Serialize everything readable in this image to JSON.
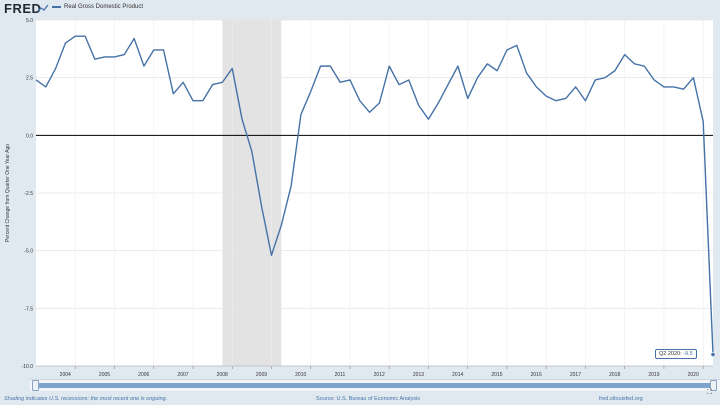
{
  "header": {
    "logo": "FRED",
    "legend_label": "Real Gross Domestic Product"
  },
  "tooltip": {
    "label": "Q2 2020:",
    "value": "-9.5"
  },
  "footer": {
    "left": "Shading indicates U.S. recessions; the most recent one is ongoing.",
    "center": "Source: U.S. Bureau of Economic Analysis",
    "right": "fred.stlouisfed.org"
  },
  "colors": {
    "series": "#4572a7",
    "recession": "#e3e3e3",
    "background": "#e1e9f0",
    "plot_bg": "#ffffff"
  },
  "chart_data": {
    "type": "line",
    "ylabel": "Percent Change from Quarter One Year Ago",
    "ylim": [
      -10,
      5
    ],
    "yticks": [
      5,
      2.5,
      0,
      -2.5,
      -5,
      -7.5,
      -10
    ],
    "ytick_labels": [
      "5.0",
      "2.5",
      "0.0",
      "-2.5",
      "-5.0",
      "-7.5",
      "-10.0"
    ],
    "xlim": [
      2003.0,
      2020.25
    ],
    "xticks": [
      2004,
      2005,
      2006,
      2007,
      2008,
      2009,
      2010,
      2011,
      2012,
      2013,
      2014,
      2015,
      2016,
      2017,
      2018,
      2019,
      2020
    ],
    "xtick_labels": [
      "2004",
      "2005",
      "2006",
      "2007",
      "2008",
      "2009",
      "2010",
      "2011",
      "2012",
      "2013",
      "2014",
      "2015",
      "2016",
      "2017",
      "2018",
      "2019",
      "2020"
    ],
    "grid": true,
    "legend_position": "top-left",
    "recessions": [
      [
        2007.75,
        2009.25
      ]
    ],
    "series": [
      {
        "name": "Real Gross Domestic Product",
        "x": [
          "2003 Q1",
          "2003 Q2",
          "2003 Q3",
          "2003 Q4",
          "2004 Q1",
          "2004 Q2",
          "2004 Q3",
          "2004 Q4",
          "2005 Q1",
          "2005 Q2",
          "2005 Q3",
          "2005 Q4",
          "2006 Q1",
          "2006 Q2",
          "2006 Q3",
          "2006 Q4",
          "2007 Q1",
          "2007 Q2",
          "2007 Q3",
          "2007 Q4",
          "2008 Q1",
          "2008 Q2",
          "2008 Q3",
          "2008 Q4",
          "2009 Q1",
          "2009 Q2",
          "2009 Q3",
          "2009 Q4",
          "2010 Q1",
          "2010 Q2",
          "2010 Q3",
          "2010 Q4",
          "2011 Q1",
          "2011 Q2",
          "2011 Q3",
          "2011 Q4",
          "2012 Q1",
          "2012 Q2",
          "2012 Q3",
          "2012 Q4",
          "2013 Q1",
          "2013 Q2",
          "2013 Q3",
          "2013 Q4",
          "2014 Q1",
          "2014 Q2",
          "2014 Q3",
          "2014 Q4",
          "2015 Q1",
          "2015 Q2",
          "2015 Q3",
          "2015 Q4",
          "2016 Q1",
          "2016 Q2",
          "2016 Q3",
          "2016 Q4",
          "2017 Q1",
          "2017 Q2",
          "2017 Q3",
          "2017 Q4",
          "2018 Q1",
          "2018 Q2",
          "2018 Q3",
          "2018 Q4",
          "2019 Q1",
          "2019 Q2",
          "2019 Q3",
          "2019 Q4",
          "2020 Q1",
          "2020 Q2"
        ],
        "values": [
          2.4,
          2.1,
          2.9,
          4.0,
          4.3,
          4.3,
          3.3,
          3.4,
          3.4,
          3.5,
          4.2,
          3.0,
          3.7,
          3.7,
          1.8,
          2.3,
          1.5,
          1.5,
          2.2,
          2.3,
          2.9,
          0.7,
          -0.7,
          -3.1,
          -5.2,
          -3.9,
          -2.2,
          0.9,
          1.9,
          3.0,
          3.0,
          2.3,
          2.4,
          1.5,
          1.0,
          1.4,
          3.0,
          2.2,
          2.4,
          1.3,
          0.7,
          1.4,
          2.2,
          3.0,
          1.6,
          2.5,
          3.1,
          2.8,
          3.7,
          3.9,
          2.7,
          2.1,
          1.7,
          1.5,
          1.6,
          2.1,
          1.5,
          2.4,
          2.5,
          2.8,
          3.5,
          3.1,
          3.0,
          2.4,
          2.1,
          2.1,
          2.0,
          2.5,
          0.6,
          -9.5
        ]
      }
    ]
  }
}
